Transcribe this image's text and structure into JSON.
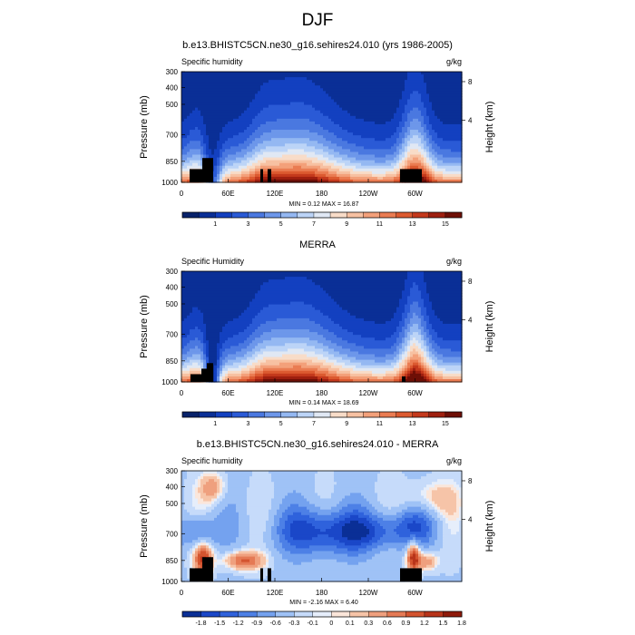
{
  "page_title": "DJF",
  "colors": {
    "seq": [
      "#08226a",
      "#0a2f96",
      "#1340c0",
      "#2a5ad6",
      "#4a78e0",
      "#6d97ea",
      "#94b8f2",
      "#bcd4f7",
      "#e0e8f4",
      "#f8dcc8",
      "#f7c1a2",
      "#f3a07a",
      "#ea7c52",
      "#dc5a30",
      "#c4391c",
      "#9e1f0f",
      "#6e0f06"
    ],
    "div": [
      "#0a2f96",
      "#1a47c8",
      "#2f62dc",
      "#4d80e6",
      "#74a2ef",
      "#9fc2f6",
      "#c6dbfa",
      "#e6eefb",
      "#fbe6da",
      "#f6c4a8",
      "#efa07e",
      "#e57a55",
      "#d4542f",
      "#b8341a",
      "#8f1a0a"
    ],
    "land": "#000000"
  },
  "chart_data": [
    {
      "id": "model",
      "type": "heatmap",
      "title": "b.e13.BHISTC5CN.ne30_g16.sehires24.010 (yrs 1986-2005)",
      "left_label": "Specific humidity",
      "right_label": "g/kg",
      "ylabel": "Pressure (mb)",
      "ylabel_right": "Height (km)",
      "pressure_ticks": [
        "300",
        "400",
        "500",
        "700",
        "850",
        "1000"
      ],
      "height_ticks": [
        "8",
        "4"
      ],
      "x_ticks": [
        "0",
        "60E",
        "120E",
        "180",
        "120W",
        "60W"
      ],
      "stats": "MIN =   0.12  MAX =  16.87",
      "colorbar_labels": [
        "1",
        "3",
        "5",
        "7",
        "9",
        "11",
        "13",
        "15"
      ],
      "colorbar_levels": [
        0,
        1,
        2,
        3,
        4,
        5,
        6,
        7,
        8,
        9,
        10,
        11,
        12,
        13,
        14,
        15,
        16
      ],
      "colormap": "seq",
      "min": 0.12,
      "max": 16.87
    },
    {
      "id": "obs",
      "type": "heatmap",
      "title": "MERRA",
      "left_label": "Specific Humidity",
      "right_label": "g/kg",
      "ylabel": "Pressure (mb)",
      "ylabel_right": "Height (km)",
      "pressure_ticks": [
        "300",
        "400",
        "500",
        "700",
        "850",
        "1000"
      ],
      "height_ticks": [
        "8",
        "4"
      ],
      "x_ticks": [
        "0",
        "60E",
        "120E",
        "180",
        "120W",
        "60W"
      ],
      "stats": "MIN =   0.14  MAX =  18.69",
      "colorbar_labels": [
        "1",
        "3",
        "5",
        "7",
        "9",
        "11",
        "13",
        "15"
      ],
      "colorbar_levels": [
        0,
        1,
        2,
        3,
        4,
        5,
        6,
        7,
        8,
        9,
        10,
        11,
        12,
        13,
        14,
        15,
        16
      ],
      "colormap": "seq",
      "min": 0.14,
      "max": 18.69
    },
    {
      "id": "diff",
      "type": "heatmap",
      "title": "b.e13.BHISTC5CN.ne30_g16.sehires24.010 - MERRA",
      "left_label": "Specific humidity",
      "right_label": "g/kg",
      "ylabel": "Pressure (mb)",
      "ylabel_right": "Height (km)",
      "pressure_ticks": [
        "300",
        "400",
        "500",
        "700",
        "850",
        "1000"
      ],
      "height_ticks": [
        "8",
        "4"
      ],
      "x_ticks": [
        "0",
        "60E",
        "120E",
        "180",
        "120W",
        "60W"
      ],
      "stats": "MIN =  -2.16  MAX =   6.40",
      "colorbar_labels": [
        "-1.8",
        "-1.5",
        "-1.2",
        "-0.9",
        "-0.6",
        "-0.3",
        "-0.1",
        "0",
        "0.1",
        "0.3",
        "0.6",
        "0.9",
        "1.2",
        "1.5",
        "1.8"
      ],
      "colorbar_levels": [
        -1.8,
        -1.5,
        -1.2,
        -0.9,
        -0.6,
        -0.3,
        -0.1,
        0,
        0.1,
        0.3,
        0.6,
        0.9,
        1.2,
        1.5,
        1.8
      ],
      "colormap": "div",
      "min": -2.16,
      "max": 6.4
    }
  ]
}
